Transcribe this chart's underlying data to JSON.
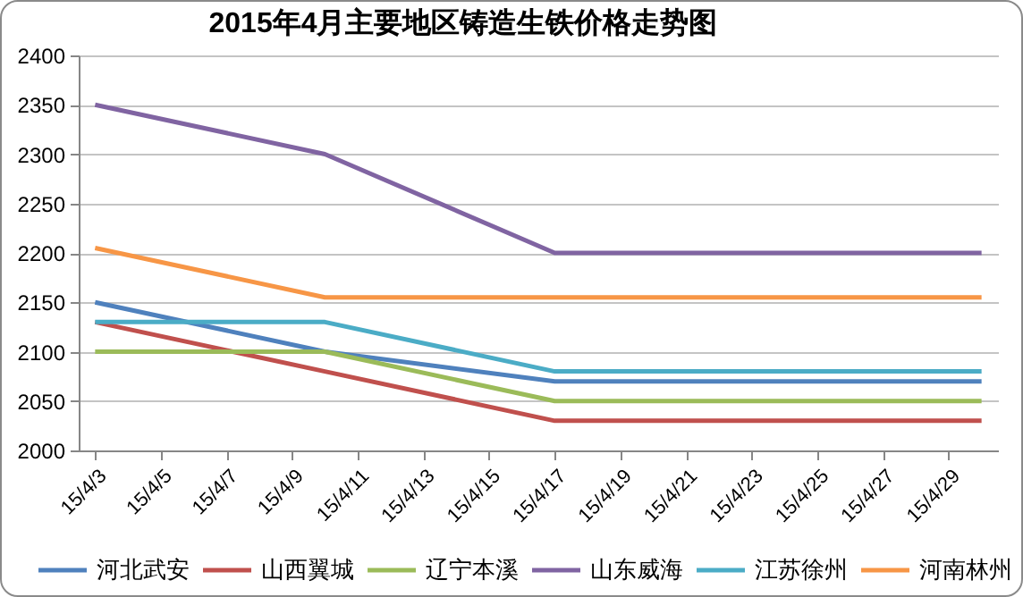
{
  "chart_data": {
    "type": "line",
    "title": "2015年4月主要地区铸造生铁价格走势图",
    "x": [
      "2015-04-03",
      "2015-04-10",
      "2015-04-17",
      "2015-04-30"
    ],
    "xlim": [
      "2015-04-02T12:00",
      "2015-04-30T12:00"
    ],
    "xticks": [
      {
        "value": "2015-04-03",
        "label": "15/4/3"
      },
      {
        "value": "2015-04-05",
        "label": "15/4/5"
      },
      {
        "value": "2015-04-07",
        "label": "15/4/7"
      },
      {
        "value": "2015-04-09",
        "label": "15/4/9"
      },
      {
        "value": "2015-04-11",
        "label": "15/4/11"
      },
      {
        "value": "2015-04-13",
        "label": "15/4/13"
      },
      {
        "value": "2015-04-15",
        "label": "15/4/15"
      },
      {
        "value": "2015-04-17",
        "label": "15/4/17"
      },
      {
        "value": "2015-04-19",
        "label": "15/4/19"
      },
      {
        "value": "2015-04-21",
        "label": "15/4/21"
      },
      {
        "value": "2015-04-23",
        "label": "15/4/23"
      },
      {
        "value": "2015-04-25",
        "label": "15/4/25"
      },
      {
        "value": "2015-04-27",
        "label": "15/4/27"
      },
      {
        "value": "2015-04-29",
        "label": "15/4/29"
      }
    ],
    "ylim": [
      2000,
      2400
    ],
    "yticks": [
      2000,
      2050,
      2100,
      2150,
      2200,
      2250,
      2300,
      2350,
      2400
    ],
    "series": [
      {
        "name": "河北武安",
        "color": "#4f81bd",
        "values": [
          2150,
          2100,
          2070,
          2070
        ]
      },
      {
        "name": "山西翼城",
        "color": "#c0504d",
        "values": [
          2130,
          2080,
          2030,
          2030
        ]
      },
      {
        "name": "辽宁本溪",
        "color": "#9bbb59",
        "values": [
          2100,
          2100,
          2050,
          2050
        ]
      },
      {
        "name": "山东威海",
        "color": "#8064a2",
        "values": [
          2350,
          2300,
          2200,
          2200
        ]
      },
      {
        "name": "江苏徐州",
        "color": "#4bacc6",
        "values": [
          2130,
          2130,
          2080,
          2080
        ]
      },
      {
        "name": "河南林州",
        "color": "#f79646",
        "values": [
          2205,
          2155,
          2155,
          2155
        ]
      }
    ],
    "grid": "y",
    "legend": "bottom",
    "marker": "none",
    "line_style": "solid"
  }
}
